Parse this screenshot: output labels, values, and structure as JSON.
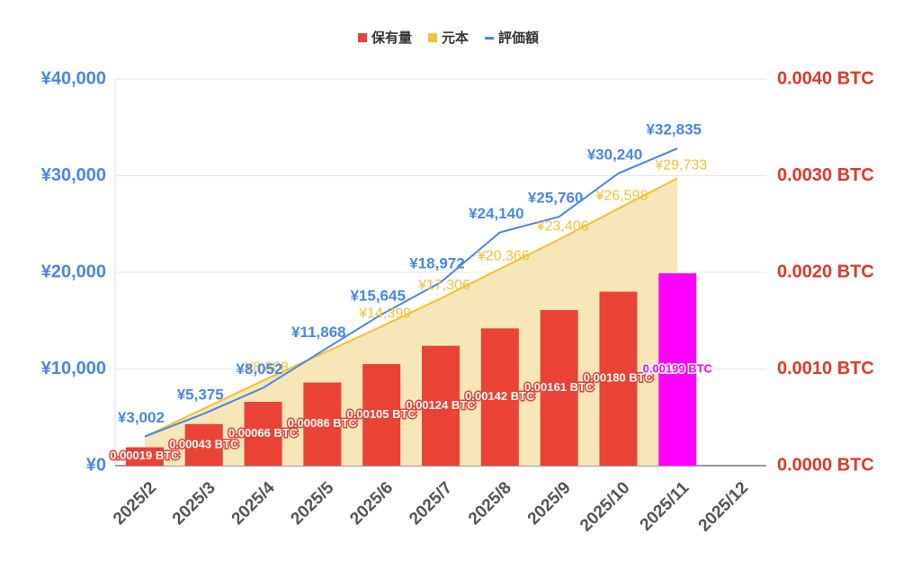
{
  "chart_data": {
    "type": "combo",
    "categories": [
      "2025/2",
      "2025/3",
      "2025/4",
      "2025/5",
      "2025/6",
      "2025/7",
      "2025/8",
      "2025/9",
      "2025/10",
      "2025/11",
      "2025/12"
    ],
    "ylim": [
      0,
      40000
    ],
    "yticks": [
      {
        "value": 0,
        "label": "¥0"
      },
      {
        "value": 10000,
        "label": "¥10,000"
      },
      {
        "value": 20000,
        "label": "¥20,000"
      },
      {
        "value": 30000,
        "label": "¥30,000"
      },
      {
        "value": 40000,
        "label": "¥40,000"
      }
    ],
    "y2lim": [
      0,
      0.004
    ],
    "y2ticks": [
      {
        "value": 0,
        "label": "0.0000 BTC"
      },
      {
        "value": 0.001,
        "label": "0.0010 BTC"
      },
      {
        "value": 0.002,
        "label": "0.0020 BTC"
      },
      {
        "value": 0.003,
        "label": "0.0030 BTC"
      },
      {
        "value": 0.004,
        "label": "0.0040 BTC"
      }
    ],
    "series": [
      {
        "name": "保有量",
        "type": "bar",
        "axis": "y2",
        "color": "#ea4335",
        "colors": [
          "#ea4335",
          "#ea4335",
          "#ea4335",
          "#ea4335",
          "#ea4335",
          "#ea4335",
          "#ea4335",
          "#ea4335",
          "#ea4335",
          "#ff00ff",
          null
        ],
        "values": [
          0.00019,
          0.00043,
          0.00066,
          0.00086,
          0.00105,
          0.00124,
          0.00142,
          0.00161,
          0.0018,
          0.00199,
          null
        ],
        "value_labels": [
          "0.00019 BTC",
          "0.00043 BTC",
          "0.00066 BTC",
          "0.00086 BTC",
          "0.00105 BTC",
          "0.00124 BTC",
          "0.00142 BTC",
          "0.00161 BTC",
          "0.00180 BTC",
          "0.00199 BTC",
          null
        ]
      },
      {
        "name": "元本",
        "type": "area",
        "color": "#f1c232",
        "fill": "#f7e6b8",
        "values": [
          3000,
          5900,
          8808,
          11600,
          14399,
          17306,
          20366,
          23406,
          26598,
          29733,
          null
        ],
        "value_labels": [
          null,
          null,
          "¥8,808",
          null,
          "¥14,399",
          "¥17,306",
          "¥20,366",
          "¥23,406",
          "¥26,598",
          "¥29,733",
          null
        ]
      },
      {
        "name": "評価額",
        "type": "line",
        "color": "#4a86e8",
        "values": [
          3002,
          5375,
          8052,
          11868,
          15645,
          18972,
          24140,
          25760,
          30240,
          32835,
          null
        ],
        "value_labels": [
          "¥3,002",
          "¥5,375",
          "¥8,052",
          "¥11,868",
          "¥15,645",
          "¥18,972",
          "¥24,140",
          "¥25,760",
          "¥30,240",
          "¥32,835",
          null
        ]
      }
    ]
  }
}
